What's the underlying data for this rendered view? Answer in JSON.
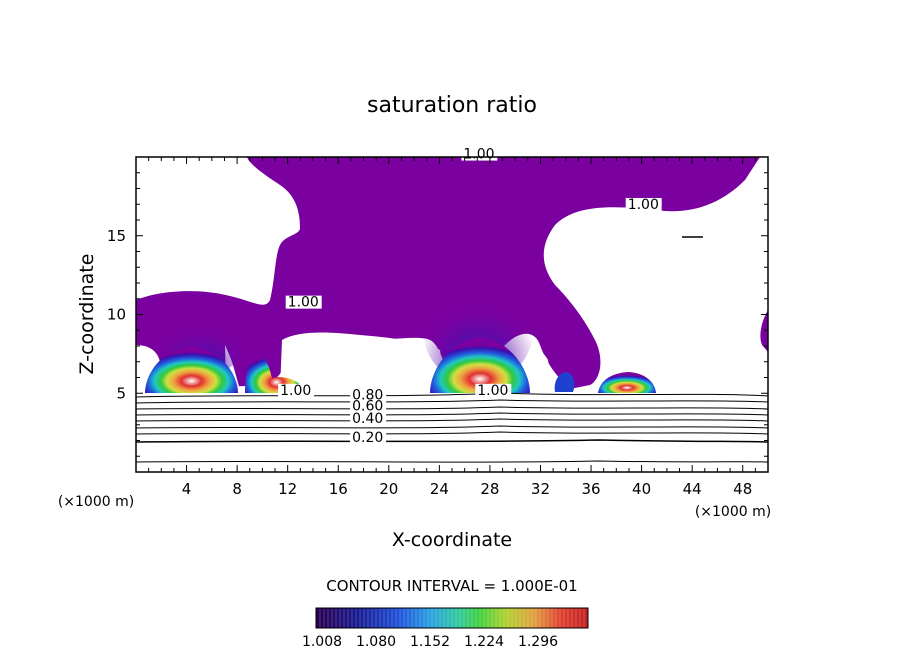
{
  "chart_data": {
    "type": "heatmap",
    "title": "saturation ratio",
    "xlabel": "X-coordinate",
    "ylabel": "Z-coordinate",
    "x_unit_left": "(×1000 m)",
    "x_unit_right": "(×1000 m)",
    "xlim": [
      0,
      50
    ],
    "ylim": [
      0,
      20
    ],
    "x_ticks": [
      4,
      8,
      12,
      16,
      20,
      24,
      28,
      32,
      36,
      40,
      44,
      48
    ],
    "y_ticks": [
      5,
      10,
      15
    ],
    "contour_interval_label": "CONTOUR INTERVAL = 1.000E-01",
    "colorbar": {
      "ticks": [
        "1.008",
        "1.080",
        "1.152",
        "1.224",
        "1.296"
      ],
      "colors": [
        "#2a0050",
        "#1a1a90",
        "#1e50d8",
        "#2aa0e0",
        "#30c8a0",
        "#40d040",
        "#b0d030",
        "#e0a040",
        "#e04030",
        "#c02020"
      ]
    },
    "contour_labels": [
      {
        "text": "1.00",
        "x": 25.9,
        "z": 19.9
      },
      {
        "text": "1.00",
        "x": 38.9,
        "z": 16.7
      },
      {
        "text": "1.00",
        "x": 12.0,
        "z": 10.5
      },
      {
        "text": "1.00",
        "x": 11.4,
        "z": 4.9
      },
      {
        "text": "1.00",
        "x": 27.0,
        "z": 4.9
      },
      {
        "text": "0.80",
        "x": 17.1,
        "z": 4.6
      },
      {
        "text": "0.60",
        "x": 17.1,
        "z": 3.9
      },
      {
        "text": "0.40",
        "x": 17.1,
        "z": 3.1
      },
      {
        "text": "0.20",
        "x": 17.1,
        "z": 1.9
      }
    ],
    "region_colors": {
      "supersaturated_background": "#7a00a0",
      "subsaturated": "#ffffff"
    }
  }
}
